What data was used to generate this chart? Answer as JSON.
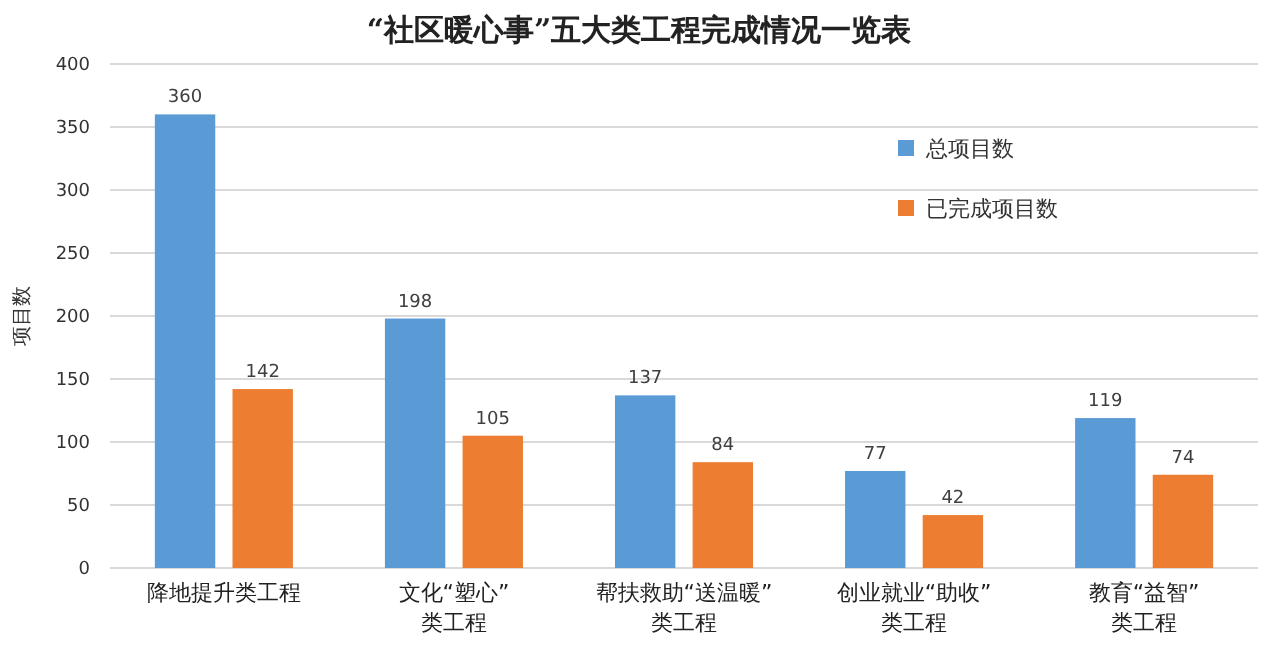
{
  "chart_data": {
    "type": "bar",
    "title": "“社区暖心事”五大类工程完成情况一览表",
    "ylabel": "项目数",
    "categories": [
      "降地提升类工程",
      "文化“塑心”类工程",
      "帮扶救助“送温暖”类工程",
      "创业就业“助收”类工程",
      "教育“益智”类工程"
    ],
    "series": [
      {
        "name": "总项目数",
        "color": "#5b9bd5",
        "values": [
          360,
          198,
          137,
          77,
          119
        ]
      },
      {
        "name": "已完成项目数",
        "color": "#ed7d31",
        "values": [
          142,
          105,
          84,
          42,
          74
        ]
      }
    ],
    "ylim": [
      0,
      400
    ],
    "yticks": [
      0,
      50,
      100,
      150,
      200,
      250,
      300,
      350,
      400
    ],
    "grid": "y",
    "legend": "top right",
    "data_labels": true
  }
}
